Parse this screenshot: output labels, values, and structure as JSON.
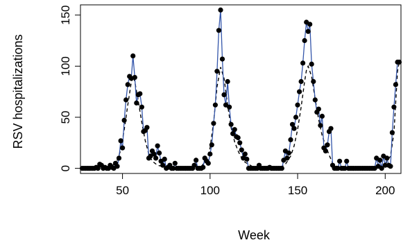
{
  "chart_data": {
    "type": "line",
    "title": "",
    "xlabel": "Week",
    "ylabel": "RSV hospitalizations",
    "xlim": [
      26,
      209
    ],
    "ylim": [
      -5,
      160
    ],
    "xticks": [
      50,
      100,
      150,
      200
    ],
    "yticks": [
      0,
      50,
      100,
      150
    ],
    "grid": false,
    "legend": "none",
    "colors": {
      "observed_line": "#3355aa",
      "points": "#000000",
      "fitted": "#000000"
    },
    "series": [
      {
        "kind": "observed",
        "points": [
          [
            27,
            0
          ],
          [
            28,
            0
          ],
          [
            29,
            0
          ],
          [
            30,
            0
          ],
          [
            31,
            0
          ],
          [
            32,
            0
          ],
          [
            33,
            0
          ],
          [
            34,
            0
          ],
          [
            35,
            1
          ],
          [
            36,
            0
          ],
          [
            37,
            4
          ],
          [
            38,
            3
          ],
          [
            39,
            0
          ],
          [
            40,
            1
          ],
          [
            41,
            0
          ],
          [
            42,
            0
          ],
          [
            43,
            3
          ],
          [
            44,
            1
          ],
          [
            45,
            0
          ],
          [
            46,
            5
          ],
          [
            47,
            2
          ],
          [
            48,
            10
          ],
          [
            49,
            27
          ],
          [
            50,
            20
          ],
          [
            51,
            47
          ],
          [
            52,
            67
          ],
          [
            53,
            82
          ],
          [
            54,
            90
          ],
          [
            55,
            88
          ],
          [
            56,
            110
          ],
          [
            57,
            89
          ],
          [
            58,
            64
          ],
          [
            59,
            72
          ],
          [
            60,
            73
          ],
          [
            61,
            60
          ],
          [
            62,
            36
          ],
          [
            63,
            37
          ],
          [
            64,
            40
          ],
          [
            65,
            10
          ],
          [
            66,
            12
          ],
          [
            67,
            17
          ],
          [
            68,
            14
          ],
          [
            69,
            10
          ],
          [
            70,
            22
          ],
          [
            71,
            15
          ],
          [
            72,
            7
          ],
          [
            73,
            3
          ],
          [
            74,
            9
          ],
          [
            75,
            0
          ],
          [
            76,
            1
          ],
          [
            77,
            3
          ],
          [
            78,
            0
          ],
          [
            79,
            0
          ],
          [
            80,
            5
          ],
          [
            81,
            0
          ],
          [
            82,
            0
          ],
          [
            83,
            0
          ],
          [
            84,
            0
          ],
          [
            85,
            0
          ],
          [
            86,
            0
          ],
          [
            87,
            0
          ],
          [
            88,
            0
          ],
          [
            89,
            0
          ],
          [
            90,
            0
          ],
          [
            91,
            3
          ],
          [
            92,
            8
          ],
          [
            93,
            0
          ],
          [
            94,
            0
          ],
          [
            95,
            0
          ],
          [
            96,
            1
          ],
          [
            97,
            10
          ],
          [
            98,
            7
          ],
          [
            99,
            5
          ],
          [
            100,
            14
          ],
          [
            101,
            23
          ],
          [
            102,
            44
          ],
          [
            103,
            62
          ],
          [
            104,
            95
          ],
          [
            105,
            135
          ],
          [
            106,
            155
          ],
          [
            107,
            107
          ],
          [
            108,
            72
          ],
          [
            109,
            62
          ],
          [
            110,
            85
          ],
          [
            111,
            60
          ],
          [
            112,
            43
          ],
          [
            113,
            34
          ],
          [
            114,
            38
          ],
          [
            115,
            31
          ],
          [
            116,
            30
          ],
          [
            117,
            25
          ],
          [
            118,
            18
          ],
          [
            119,
            10
          ],
          [
            120,
            14
          ],
          [
            121,
            9
          ],
          [
            122,
            0
          ],
          [
            123,
            0
          ],
          [
            124,
            0
          ],
          [
            125,
            0
          ],
          [
            126,
            0
          ],
          [
            127,
            0
          ],
          [
            128,
            3
          ],
          [
            129,
            0
          ],
          [
            130,
            0
          ],
          [
            131,
            0
          ],
          [
            132,
            0
          ],
          [
            133,
            0
          ],
          [
            134,
            1
          ],
          [
            135,
            0
          ],
          [
            136,
            0
          ],
          [
            137,
            0
          ],
          [
            138,
            0
          ],
          [
            139,
            0
          ],
          [
            140,
            0
          ],
          [
            141,
            0
          ],
          [
            142,
            8
          ],
          [
            143,
            17
          ],
          [
            144,
            10
          ],
          [
            145,
            15
          ],
          [
            146,
            28
          ],
          [
            147,
            43
          ],
          [
            148,
            39
          ],
          [
            149,
            50
          ],
          [
            150,
            62
          ],
          [
            151,
            75
          ],
          [
            152,
            85
          ],
          [
            153,
            103
          ],
          [
            154,
            125
          ],
          [
            155,
            143
          ],
          [
            156,
            134
          ],
          [
            157,
            141
          ],
          [
            158,
            102
          ],
          [
            159,
            85
          ],
          [
            160,
            67
          ],
          [
            161,
            55
          ],
          [
            162,
            58
          ],
          [
            163,
            42
          ],
          [
            164,
            51
          ],
          [
            165,
            20
          ],
          [
            166,
            17
          ],
          [
            167,
            23
          ],
          [
            168,
            36
          ],
          [
            169,
            39
          ],
          [
            170,
            3
          ],
          [
            171,
            0
          ],
          [
            172,
            0
          ],
          [
            173,
            0
          ],
          [
            174,
            7
          ],
          [
            175,
            0
          ],
          [
            176,
            0
          ],
          [
            177,
            0
          ],
          [
            178,
            7
          ],
          [
            179,
            0
          ],
          [
            180,
            0
          ],
          [
            181,
            0
          ],
          [
            182,
            0
          ],
          [
            183,
            0
          ],
          [
            184,
            0
          ],
          [
            185,
            0
          ],
          [
            186,
            0
          ],
          [
            187,
            0
          ],
          [
            188,
            0
          ],
          [
            189,
            0
          ],
          [
            190,
            0
          ],
          [
            191,
            0
          ],
          [
            192,
            0
          ],
          [
            193,
            0
          ],
          [
            194,
            0
          ],
          [
            195,
            10
          ],
          [
            196,
            2
          ],
          [
            197,
            8
          ],
          [
            198,
            0
          ],
          [
            199,
            12
          ],
          [
            200,
            3
          ],
          [
            201,
            10
          ],
          [
            202,
            3
          ],
          [
            203,
            2
          ],
          [
            204,
            35
          ],
          [
            205,
            60
          ],
          [
            206,
            82
          ],
          [
            207,
            104
          ],
          [
            208,
            104
          ]
        ]
      },
      {
        "kind": "fitted",
        "points": [
          [
            27,
            0
          ],
          [
            40,
            0.5
          ],
          [
            44,
            2
          ],
          [
            47,
            8
          ],
          [
            49,
            18
          ],
          [
            51,
            38
          ],
          [
            53,
            62
          ],
          [
            55,
            84
          ],
          [
            56,
            90
          ],
          [
            57,
            85
          ],
          [
            59,
            66
          ],
          [
            61,
            45
          ],
          [
            63,
            27
          ],
          [
            65,
            14
          ],
          [
            67,
            7
          ],
          [
            70,
            3
          ],
          [
            75,
            1
          ],
          [
            90,
            0.5
          ],
          [
            95,
            2
          ],
          [
            98,
            8
          ],
          [
            100,
            20
          ],
          [
            102,
            45
          ],
          [
            104,
            80
          ],
          [
            106,
            99
          ],
          [
            108,
            88
          ],
          [
            110,
            62
          ],
          [
            112,
            40
          ],
          [
            114,
            26
          ],
          [
            116,
            17
          ],
          [
            118,
            10
          ],
          [
            120,
            6
          ],
          [
            124,
            2
          ],
          [
            135,
            0.5
          ],
          [
            140,
            1
          ],
          [
            143,
            4
          ],
          [
            146,
            12
          ],
          [
            148,
            22
          ],
          [
            150,
            38
          ],
          [
            152,
            60
          ],
          [
            154,
            85
          ],
          [
            155,
            96
          ],
          [
            156,
            100
          ],
          [
            158,
            90
          ],
          [
            160,
            68
          ],
          [
            162,
            48
          ],
          [
            164,
            32
          ],
          [
            166,
            22
          ],
          [
            168,
            13
          ],
          [
            170,
            5
          ],
          [
            173,
            1
          ],
          [
            185,
            0.5
          ],
          [
            195,
            1
          ],
          [
            200,
            4
          ],
          [
            203,
            12
          ],
          [
            205,
            35
          ],
          [
            207,
            95
          ],
          [
            208,
            104
          ]
        ]
      }
    ]
  }
}
